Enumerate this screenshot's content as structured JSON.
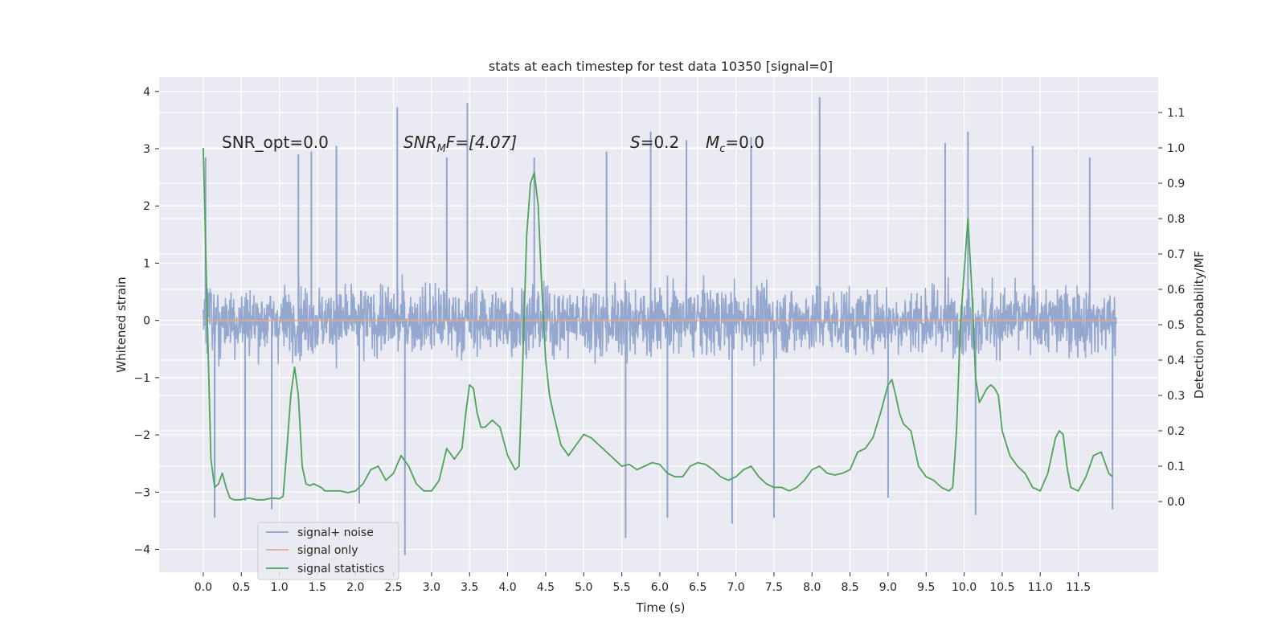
{
  "chart_data": {
    "type": "line",
    "title": "stats at each timestep for test data 10350 [signal=0]",
    "xlabel": "Time (s)",
    "ylabel": "Whitened strain",
    "ylabel_right": "Detection probability/MF",
    "xlim": [
      -0.58,
      12.55
    ],
    "ylim": [
      -4.4,
      4.25
    ],
    "ylim_right": [
      -0.2,
      1.2
    ],
    "x_ticks": [
      0.0,
      0.5,
      1.0,
      1.5,
      2.0,
      2.5,
      3.0,
      3.5,
      4.0,
      4.5,
      5.0,
      5.5,
      6.0,
      6.5,
      7.0,
      7.5,
      8.0,
      8.5,
      9.0,
      9.5,
      10.0,
      10.5,
      11.0,
      11.5
    ],
    "x_tick_labels": [
      "0.0",
      "0.5",
      "1.0",
      "1.5",
      "2.0",
      "2.5",
      "3.0",
      "3.5",
      "4.0",
      "4.5",
      "5.0",
      "5.5",
      "6.0",
      "6.5",
      "7.0",
      "7.5",
      "8.0",
      "8.5",
      "9.0",
      "9.5",
      "10.0",
      "10.5",
      "11.0",
      "11.5"
    ],
    "y_ticks": [
      4,
      3,
      2,
      1,
      0,
      -1,
      -2,
      -3,
      -4
    ],
    "y_tick_labels": [
      "4",
      "3",
      "2",
      "1",
      "0",
      "−1",
      "−2",
      "−3",
      "−4"
    ],
    "y2_ticks": [
      1.1,
      1.0,
      0.9,
      0.8,
      0.7,
      0.6,
      0.5,
      0.4,
      0.3,
      0.2,
      0.1,
      0.0
    ],
    "y2_tick_labels": [
      "1.1",
      "1.0",
      "0.9",
      "0.8",
      "0.7",
      "0.6",
      "0.5",
      "0.4",
      "0.3",
      "0.2",
      "0.1",
      "0.0"
    ],
    "grid": true,
    "legend_position": "lower-left",
    "annotations": {
      "snr_opt": "SNR_opt=0.0",
      "snr_mf_prefix": "SNR",
      "snr_mf_sub": "M",
      "snr_mf_suffix": "F=[4.07]",
      "s_var": "S",
      "s_value": "=0.2",
      "mc_var": "M",
      "mc_sub": "c",
      "mc_value": "=0.0"
    },
    "series": [
      {
        "name": "signal+ noise",
        "color": "#8fa4cc",
        "axis": "left",
        "x_range": [
          0.0,
          12.0
        ],
        "typical_range": [
          -2.0,
          2.0
        ],
        "peaks": [
          [
            0.03,
            2.85
          ],
          [
            0.15,
            -3.45
          ],
          [
            0.55,
            -3.15
          ],
          [
            0.9,
            -3.3
          ],
          [
            1.25,
            2.9
          ],
          [
            1.42,
            2.95
          ],
          [
            1.75,
            3.05
          ],
          [
            2.05,
            -3.2
          ],
          [
            2.55,
            3.72
          ],
          [
            2.65,
            -4.1
          ],
          [
            3.2,
            2.85
          ],
          [
            3.47,
            3.8
          ],
          [
            4.35,
            2.85
          ],
          [
            5.3,
            2.95
          ],
          [
            5.55,
            -3.8
          ],
          [
            5.88,
            3.3
          ],
          [
            6.1,
            -3.45
          ],
          [
            6.35,
            3.15
          ],
          [
            6.95,
            -3.55
          ],
          [
            7.2,
            3.2
          ],
          [
            7.5,
            -3.45
          ],
          [
            8.1,
            3.9
          ],
          [
            9.0,
            -3.1
          ],
          [
            9.75,
            3.1
          ],
          [
            10.05,
            3.3
          ],
          [
            10.15,
            -3.4
          ],
          [
            10.9,
            3.05
          ],
          [
            11.65,
            2.85
          ],
          [
            11.95,
            -3.3
          ]
        ]
      },
      {
        "name": "signal only",
        "color": "#e8a88a",
        "axis": "left",
        "x": [
          0.0,
          12.0
        ],
        "values": [
          0.0,
          0.0
        ]
      },
      {
        "name": "signal statistics",
        "color": "#4ea25a",
        "axis": "right",
        "x": [
          0.0,
          0.05,
          0.1,
          0.15,
          0.2,
          0.25,
          0.3,
          0.35,
          0.4,
          0.45,
          0.5,
          0.55,
          0.6,
          0.7,
          0.8,
          0.9,
          1.0,
          1.05,
          1.1,
          1.15,
          1.2,
          1.25,
          1.3,
          1.35,
          1.4,
          1.45,
          1.5,
          1.55,
          1.6,
          1.7,
          1.8,
          1.9,
          2.0,
          2.1,
          2.2,
          2.3,
          2.4,
          2.5,
          2.6,
          2.7,
          2.8,
          2.9,
          3.0,
          3.1,
          3.2,
          3.3,
          3.4,
          3.45,
          3.5,
          3.55,
          3.6,
          3.65,
          3.7,
          3.8,
          3.9,
          4.0,
          4.1,
          4.15,
          4.2,
          4.25,
          4.3,
          4.35,
          4.4,
          4.45,
          4.5,
          4.55,
          4.6,
          4.7,
          4.8,
          4.9,
          5.0,
          5.1,
          5.2,
          5.3,
          5.4,
          5.5,
          5.6,
          5.7,
          5.8,
          5.9,
          6.0,
          6.1,
          6.2,
          6.3,
          6.4,
          6.5,
          6.6,
          6.7,
          6.8,
          6.9,
          7.0,
          7.1,
          7.2,
          7.3,
          7.4,
          7.5,
          7.6,
          7.7,
          7.8,
          7.9,
          8.0,
          8.1,
          8.2,
          8.3,
          8.4,
          8.5,
          8.6,
          8.7,
          8.8,
          8.9,
          9.0,
          9.05,
          9.1,
          9.15,
          9.2,
          9.3,
          9.4,
          9.5,
          9.6,
          9.7,
          9.8,
          9.85,
          9.9,
          9.95,
          10.0,
          10.05,
          10.1,
          10.15,
          10.2,
          10.3,
          10.35,
          10.4,
          10.45,
          10.5,
          10.6,
          10.7,
          10.8,
          10.9,
          11.0,
          11.1,
          11.2,
          11.25,
          11.3,
          11.35,
          11.4,
          11.5,
          11.6,
          11.7,
          11.8,
          11.9,
          11.95
        ],
        "values": [
          1.0,
          0.55,
          0.12,
          0.04,
          0.05,
          0.08,
          0.04,
          0.01,
          0.005,
          0.005,
          0.005,
          0.008,
          0.01,
          0.005,
          0.005,
          0.01,
          0.008,
          0.015,
          0.15,
          0.3,
          0.38,
          0.3,
          0.1,
          0.05,
          0.045,
          0.05,
          0.045,
          0.04,
          0.03,
          0.03,
          0.03,
          0.025,
          0.03,
          0.05,
          0.09,
          0.1,
          0.06,
          0.08,
          0.13,
          0.1,
          0.05,
          0.03,
          0.03,
          0.06,
          0.15,
          0.12,
          0.15,
          0.25,
          0.33,
          0.32,
          0.25,
          0.21,
          0.21,
          0.23,
          0.21,
          0.13,
          0.09,
          0.1,
          0.4,
          0.75,
          0.9,
          0.93,
          0.84,
          0.6,
          0.4,
          0.3,
          0.25,
          0.16,
          0.13,
          0.16,
          0.19,
          0.18,
          0.16,
          0.14,
          0.12,
          0.1,
          0.105,
          0.09,
          0.1,
          0.11,
          0.105,
          0.08,
          0.07,
          0.07,
          0.1,
          0.11,
          0.105,
          0.09,
          0.07,
          0.06,
          0.07,
          0.09,
          0.1,
          0.07,
          0.05,
          0.04,
          0.04,
          0.03,
          0.04,
          0.06,
          0.09,
          0.1,
          0.08,
          0.075,
          0.08,
          0.09,
          0.14,
          0.15,
          0.18,
          0.25,
          0.33,
          0.345,
          0.3,
          0.25,
          0.22,
          0.2,
          0.1,
          0.07,
          0.06,
          0.04,
          0.03,
          0.04,
          0.2,
          0.5,
          0.65,
          0.8,
          0.6,
          0.35,
          0.28,
          0.32,
          0.33,
          0.32,
          0.3,
          0.2,
          0.13,
          0.1,
          0.08,
          0.04,
          0.03,
          0.08,
          0.18,
          0.2,
          0.19,
          0.1,
          0.04,
          0.03,
          0.07,
          0.13,
          0.14,
          0.08,
          0.07
        ]
      }
    ]
  }
}
